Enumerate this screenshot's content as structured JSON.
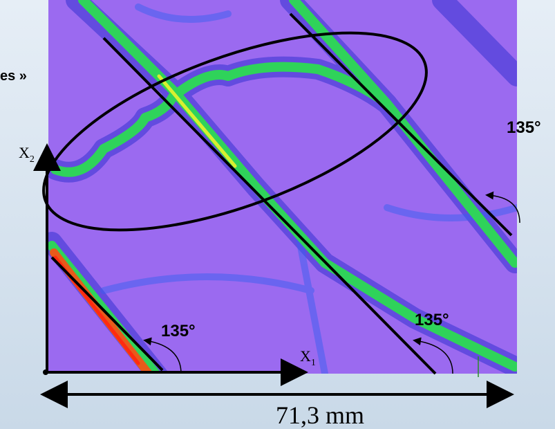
{
  "side_label": "es »",
  "axes": {
    "x2": {
      "letter": "X",
      "subscript": "2"
    },
    "x1": {
      "letter": "X",
      "subscript": "1"
    }
  },
  "angles": [
    "135°",
    "135°",
    "135°"
  ],
  "dimension": "71,3 mm"
}
